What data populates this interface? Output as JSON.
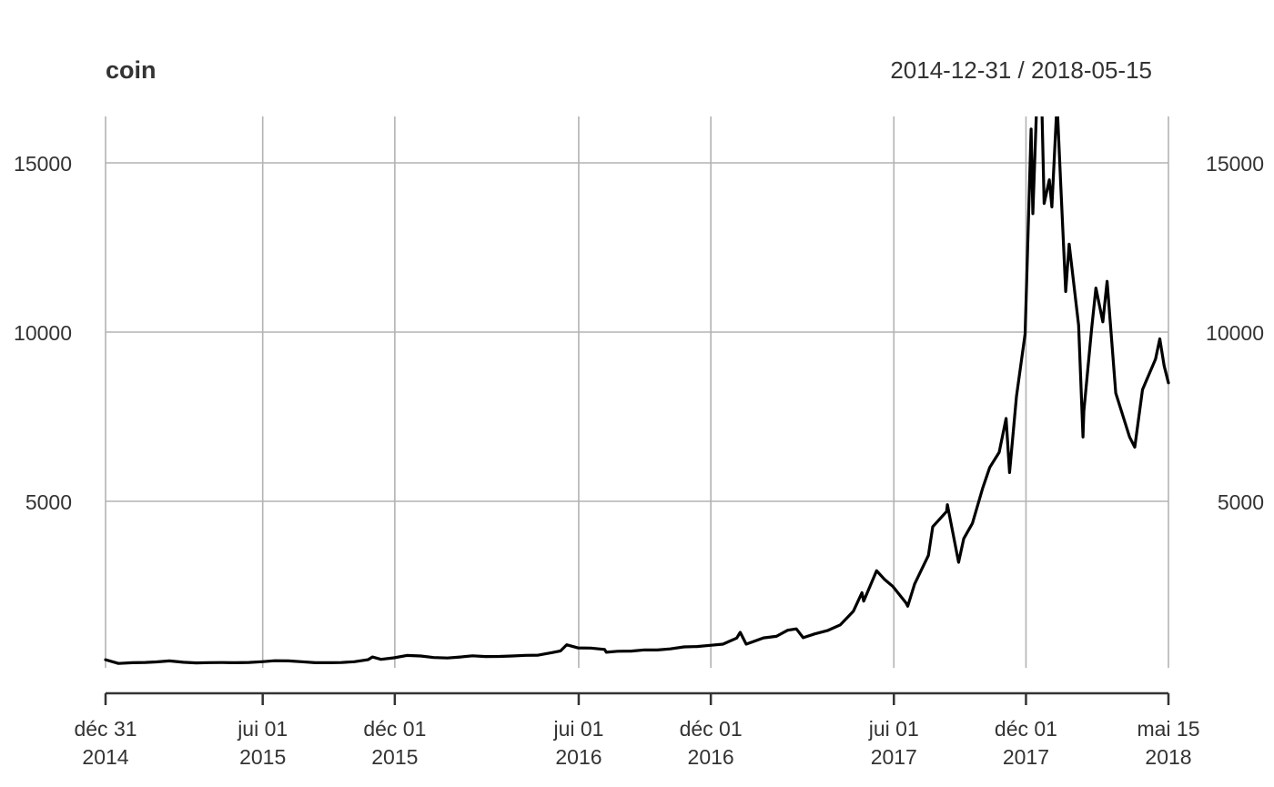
{
  "chart_data": {
    "type": "line",
    "title": "coin",
    "date_range_label": "2014-12-31 / 2018-05-15",
    "xlim": [
      "2014-12-31",
      "2018-05-15"
    ],
    "ylim": [
      0,
      16500
    ],
    "grid": true,
    "x_ticks": [
      {
        "date": "2014-12-31",
        "line1": "déc 31",
        "line2": "2014"
      },
      {
        "date": "2015-07-01",
        "line1": "jui 01",
        "line2": "2015"
      },
      {
        "date": "2015-12-01",
        "line1": "déc 01",
        "line2": "2015"
      },
      {
        "date": "2016-07-01",
        "line1": "jui 01",
        "line2": "2016"
      },
      {
        "date": "2016-12-01",
        "line1": "déc 01",
        "line2": "2016"
      },
      {
        "date": "2017-07-01",
        "line1": "jui 01",
        "line2": "2017"
      },
      {
        "date": "2017-12-01",
        "line1": "déc 01",
        "line2": "2017"
      },
      {
        "date": "2018-05-15",
        "line1": "mai 15",
        "line2": "2018"
      }
    ],
    "y_ticks": [
      5000,
      10000,
      15000
    ],
    "y_tick_labels": [
      "5000",
      "10000",
      "15000"
    ],
    "series": [
      {
        "color": "#000000",
        "points": [
          [
            "2014-12-31",
            320
          ],
          [
            "2015-01-15",
            210
          ],
          [
            "2015-01-31",
            230
          ],
          [
            "2015-02-15",
            240
          ],
          [
            "2015-02-28",
            255
          ],
          [
            "2015-03-15",
            285
          ],
          [
            "2015-03-31",
            245
          ],
          [
            "2015-04-15",
            225
          ],
          [
            "2015-04-30",
            235
          ],
          [
            "2015-05-15",
            237
          ],
          [
            "2015-05-31",
            230
          ],
          [
            "2015-06-15",
            238
          ],
          [
            "2015-06-30",
            260
          ],
          [
            "2015-07-15",
            290
          ],
          [
            "2015-07-31",
            285
          ],
          [
            "2015-08-15",
            260
          ],
          [
            "2015-08-31",
            230
          ],
          [
            "2015-09-15",
            230
          ],
          [
            "2015-09-30",
            236
          ],
          [
            "2015-10-15",
            262
          ],
          [
            "2015-10-31",
            320
          ],
          [
            "2015-11-05",
            400
          ],
          [
            "2015-11-15",
            330
          ],
          [
            "2015-11-30",
            375
          ],
          [
            "2015-12-15",
            445
          ],
          [
            "2015-12-31",
            430
          ],
          [
            "2016-01-15",
            385
          ],
          [
            "2016-01-31",
            370
          ],
          [
            "2016-02-15",
            400
          ],
          [
            "2016-02-29",
            435
          ],
          [
            "2016-03-15",
            415
          ],
          [
            "2016-03-31",
            416
          ],
          [
            "2016-04-15",
            430
          ],
          [
            "2016-04-30",
            450
          ],
          [
            "2016-05-15",
            455
          ],
          [
            "2016-05-31",
            530
          ],
          [
            "2016-06-10",
            580
          ],
          [
            "2016-06-17",
            760
          ],
          [
            "2016-06-30",
            670
          ],
          [
            "2016-07-15",
            665
          ],
          [
            "2016-07-31",
            625
          ],
          [
            "2016-08-02",
            540
          ],
          [
            "2016-08-15",
            570
          ],
          [
            "2016-08-31",
            575
          ],
          [
            "2016-09-15",
            610
          ],
          [
            "2016-09-30",
            608
          ],
          [
            "2016-10-15",
            640
          ],
          [
            "2016-10-31",
            700
          ],
          [
            "2016-11-15",
            710
          ],
          [
            "2016-11-30",
            745
          ],
          [
            "2016-12-15",
            780
          ],
          [
            "2016-12-31",
            960
          ],
          [
            "2017-01-04",
            1130
          ],
          [
            "2017-01-11",
            780
          ],
          [
            "2017-01-31",
            965
          ],
          [
            "2017-02-15",
            1010
          ],
          [
            "2017-02-28",
            1190
          ],
          [
            "2017-03-10",
            1230
          ],
          [
            "2017-03-18",
            970
          ],
          [
            "2017-03-31",
            1080
          ],
          [
            "2017-04-15",
            1180
          ],
          [
            "2017-04-30",
            1350
          ],
          [
            "2017-05-15",
            1750
          ],
          [
            "2017-05-25",
            2300
          ],
          [
            "2017-05-27",
            2050
          ],
          [
            "2017-06-11",
            2950
          ],
          [
            "2017-06-20",
            2700
          ],
          [
            "2017-06-30",
            2480
          ],
          [
            "2017-07-15",
            2000
          ],
          [
            "2017-07-17",
            1900
          ],
          [
            "2017-07-25",
            2550
          ],
          [
            "2017-07-31",
            2870
          ],
          [
            "2017-08-10",
            3400
          ],
          [
            "2017-08-15",
            4250
          ],
          [
            "2017-08-31",
            4700
          ],
          [
            "2017-09-01",
            4900
          ],
          [
            "2017-09-14",
            3200
          ],
          [
            "2017-09-20",
            3900
          ],
          [
            "2017-09-30",
            4350
          ],
          [
            "2017-10-12",
            5400
          ],
          [
            "2017-10-20",
            6000
          ],
          [
            "2017-10-31",
            6450
          ],
          [
            "2017-11-08",
            7450
          ],
          [
            "2017-11-12",
            5850
          ],
          [
            "2017-11-20",
            8100
          ],
          [
            "2017-11-30",
            9950
          ],
          [
            "2017-12-07",
            16000
          ],
          [
            "2017-12-09",
            13500
          ],
          [
            "2017-12-17",
            19300
          ],
          [
            "2017-12-22",
            13800
          ],
          [
            "2017-12-28",
            14500
          ],
          [
            "2017-12-31",
            13700
          ],
          [
            "2018-01-06",
            16800
          ],
          [
            "2018-01-10",
            14500
          ],
          [
            "2018-01-16",
            11200
          ],
          [
            "2018-01-20",
            12600
          ],
          [
            "2018-01-31",
            10200
          ],
          [
            "2018-02-05",
            6900
          ],
          [
            "2018-02-06",
            7650
          ],
          [
            "2018-02-15",
            10100
          ],
          [
            "2018-02-20",
            11300
          ],
          [
            "2018-02-28",
            10300
          ],
          [
            "2018-03-05",
            11500
          ],
          [
            "2018-03-15",
            8200
          ],
          [
            "2018-03-31",
            6900
          ],
          [
            "2018-04-06",
            6600
          ],
          [
            "2018-04-15",
            8300
          ],
          [
            "2018-04-30",
            9200
          ],
          [
            "2018-05-05",
            9800
          ],
          [
            "2018-05-10",
            9000
          ],
          [
            "2018-05-15",
            8500
          ]
        ]
      }
    ]
  }
}
